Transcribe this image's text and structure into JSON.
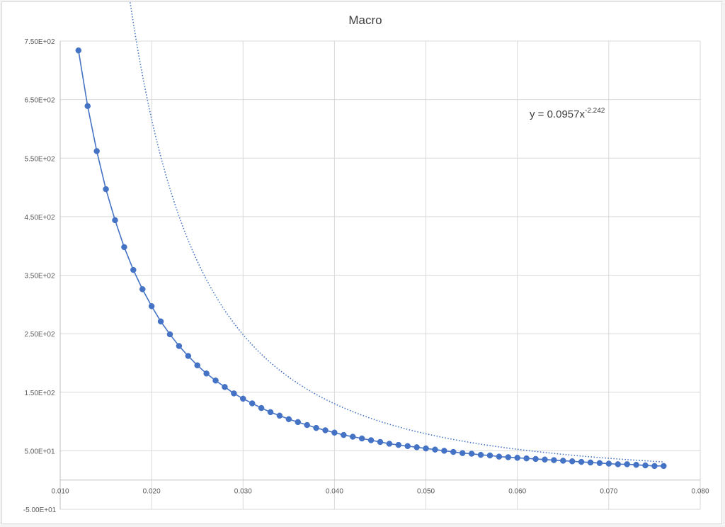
{
  "chart_data": {
    "type": "scatter",
    "title": "Macro",
    "xlabel": "",
    "ylabel": "",
    "xlim": [
      0.01,
      0.08
    ],
    "ylim": [
      -50,
      750
    ],
    "x_ticks": [
      0.01,
      0.02,
      0.03,
      0.04,
      0.05,
      0.06,
      0.07,
      0.08
    ],
    "x_tick_labels": [
      "0.010",
      "0.020",
      "0.030",
      "0.040",
      "0.050",
      "0.060",
      "0.070",
      "0.080"
    ],
    "y_ticks": [
      -50,
      50,
      150,
      250,
      350,
      450,
      550,
      650,
      750
    ],
    "y_tick_labels": [
      "-5.00E+01",
      "5.00E+01",
      "1.50E+02",
      "2.50E+02",
      "3.50E+02",
      "4.50E+02",
      "5.50E+02",
      "6.50E+02",
      "7.50E+02"
    ],
    "grid": true,
    "legend": "none",
    "series": [
      {
        "style": "line-with-markers",
        "color": "#4472C4",
        "x": [
          0.012,
          0.013,
          0.014,
          0.015,
          0.016,
          0.017,
          0.018,
          0.019,
          0.02,
          0.021,
          0.022,
          0.023,
          0.024,
          0.025,
          0.026,
          0.027,
          0.028,
          0.029,
          0.03,
          0.031,
          0.032,
          0.033,
          0.034,
          0.035,
          0.036,
          0.037,
          0.038,
          0.039,
          0.04,
          0.041,
          0.042,
          0.043,
          0.044,
          0.045,
          0.046,
          0.047,
          0.048,
          0.049,
          0.05,
          0.051,
          0.052,
          0.053,
          0.054,
          0.055,
          0.056,
          0.057,
          0.058,
          0.059,
          0.06,
          0.061,
          0.062,
          0.063,
          0.064,
          0.065,
          0.066,
          0.067,
          0.068,
          0.069,
          0.07,
          0.071,
          0.072,
          0.073,
          0.074,
          0.075,
          0.076
        ],
        "y": [
          734,
          639,
          562,
          497,
          444,
          398,
          359,
          326,
          297,
          271,
          249,
          229,
          212,
          196,
          182,
          170,
          159,
          148,
          139,
          131,
          123,
          116,
          110,
          104,
          99,
          94,
          89,
          85,
          81,
          77,
          74,
          71,
          68,
          65,
          62,
          60,
          58,
          56,
          54,
          52,
          50,
          48,
          46,
          45,
          43,
          42,
          40,
          39,
          38,
          37,
          36,
          35,
          34,
          33,
          32,
          31,
          30,
          29,
          28,
          27,
          27,
          26,
          25,
          24,
          24
        ]
      }
    ],
    "trendline": {
      "type": "power",
      "coefficient": 0.0957,
      "exponent": -2.242,
      "style": "dotted",
      "color": "#4472C4",
      "x_range": [
        0.0122,
        0.076
      ]
    },
    "annotations": {
      "equation_prefix": "y = 0.0957x",
      "equation_exponent": "-2.242"
    }
  }
}
